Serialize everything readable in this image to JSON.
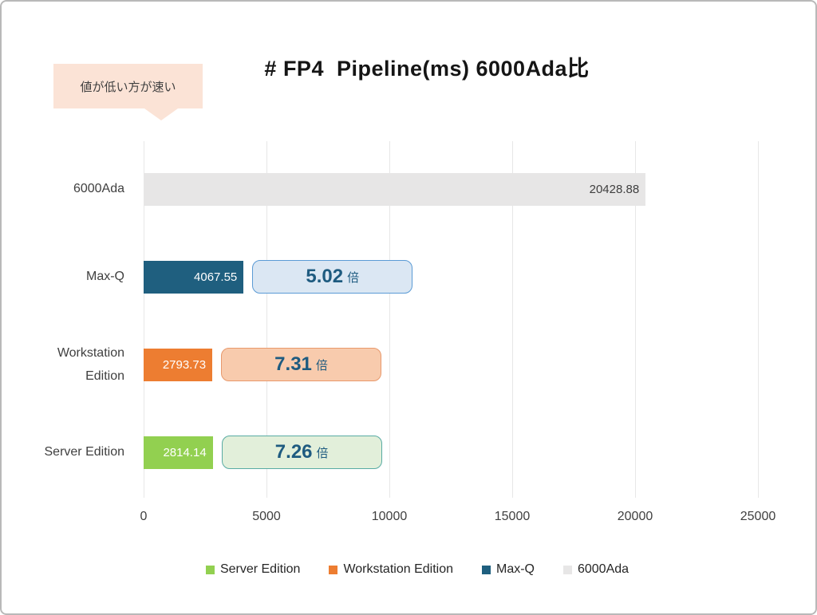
{
  "note": {
    "text": "値が低い方が速い"
  },
  "chart_data": {
    "type": "bar",
    "orientation": "horizontal",
    "title": "# FP4  Pipeline(ms) 6000Ada比",
    "xlabel": "",
    "ylabel": "",
    "x_axis": {
      "min": 0,
      "max": 25000,
      "tick_labels": [
        "0",
        "5000",
        "10000",
        "15000",
        "20000",
        "25000"
      ]
    },
    "grid": true,
    "legend_position": "bottom",
    "rows": [
      {
        "category": "6000Ada",
        "value": 20428.88,
        "value_label": "20428.88",
        "bar_color": "#e7e6e6",
        "value_label_color": "#3f3f3f",
        "ratio_badge": null
      },
      {
        "category": "Max-Q",
        "value": 4067.55,
        "value_label": "4067.55",
        "bar_color": "#1f5f7f",
        "value_label_color": "#ffffff",
        "ratio_badge": {
          "value": "5.02",
          "unit": "倍",
          "fill": "#dbe7f3",
          "border": "#5b9bd5",
          "text_color": "#1e5b80"
        }
      },
      {
        "category": "Workstation Edition",
        "value": 2793.73,
        "value_label": "2793.73",
        "bar_color": "#ed7d31",
        "value_label_color": "#ffffff",
        "ratio_badge": {
          "value": "7.31",
          "unit": "倍",
          "fill": "#f8cbad",
          "border": "#e8996c",
          "text_color": "#1e5b80"
        }
      },
      {
        "category": "Server Edition",
        "value": 2814.14,
        "value_label": "2814.14",
        "bar_color": "#92d050",
        "value_label_color": "#ffffff",
        "ratio_badge": {
          "value": "7.26",
          "unit": "倍",
          "fill": "#e2efda",
          "border": "#58aba3",
          "text_color": "#1e5b80"
        }
      }
    ],
    "legend": [
      {
        "label": "Server Edition",
        "color": "#92d050"
      },
      {
        "label": "Workstation Edition",
        "color": "#ed7d31"
      },
      {
        "label": "Max-Q",
        "color": "#1f5f7f"
      },
      {
        "label": "6000Ada",
        "color": "#e7e6e6"
      }
    ]
  }
}
